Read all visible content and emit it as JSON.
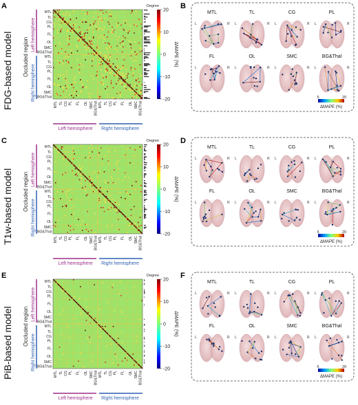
{
  "panels": {
    "A": "A",
    "B": "B",
    "C": "C",
    "D": "D",
    "E": "E",
    "F": "F"
  },
  "models": [
    {
      "name": "FDG-based model",
      "matrix_panel": "A",
      "brain_panel": "B",
      "density": 0.34,
      "seed": 11
    },
    {
      "name": "T1w-based model",
      "matrix_panel": "C",
      "brain_panel": "D",
      "density": 0.16,
      "seed": 29
    },
    {
      "name": "PiB-based model",
      "matrix_panel": "E",
      "brain_panel": "F",
      "density": 0.05,
      "seed": 47
    }
  ],
  "labels": {
    "degree": "Degree",
    "occluded_region": "Occluded region",
    "left_hemisphere": "Left hemisphere",
    "right_hemisphere": "Right hemisphere",
    "colorbar_label": "ΔMAPE (%)",
    "brain_cbar_label": "ΔMAPE (%)",
    "L": "L",
    "R": "R"
  },
  "colorbar_ticks": [
    "20",
    "10",
    "0",
    "-10",
    "-20"
  ],
  "brain_cbar_ticks": [
    "5",
    "20"
  ],
  "row_labels": [
    "MTL",
    "TL",
    "CG",
    "PL",
    "FL",
    "OL",
    "SMC",
    "BG&Thal",
    "MTL",
    "TL",
    "CG",
    "PL",
    "FL",
    "OL",
    "SMC",
    "BG&Thal"
  ],
  "col_labels": [
    "MTL",
    "TL",
    "CG",
    "PL",
    "FL",
    "OL",
    "SMC",
    "BG&Thal",
    "MTL",
    "TL",
    "CG",
    "PL",
    "FL",
    "OL",
    "SMC",
    "BG&Thal"
  ],
  "brain_regions": [
    "MTL",
    "TL",
    "CG",
    "PL",
    "FL",
    "OL",
    "SMC",
    "BG&Thal"
  ],
  "colors": {
    "matrix_bg": "#9ee36a",
    "diag": "#5a0000",
    "grid": "#e0c84a",
    "left": "#9b2f8a",
    "right": "#2f5fb0",
    "brain": "#e9c9cb"
  }
}
